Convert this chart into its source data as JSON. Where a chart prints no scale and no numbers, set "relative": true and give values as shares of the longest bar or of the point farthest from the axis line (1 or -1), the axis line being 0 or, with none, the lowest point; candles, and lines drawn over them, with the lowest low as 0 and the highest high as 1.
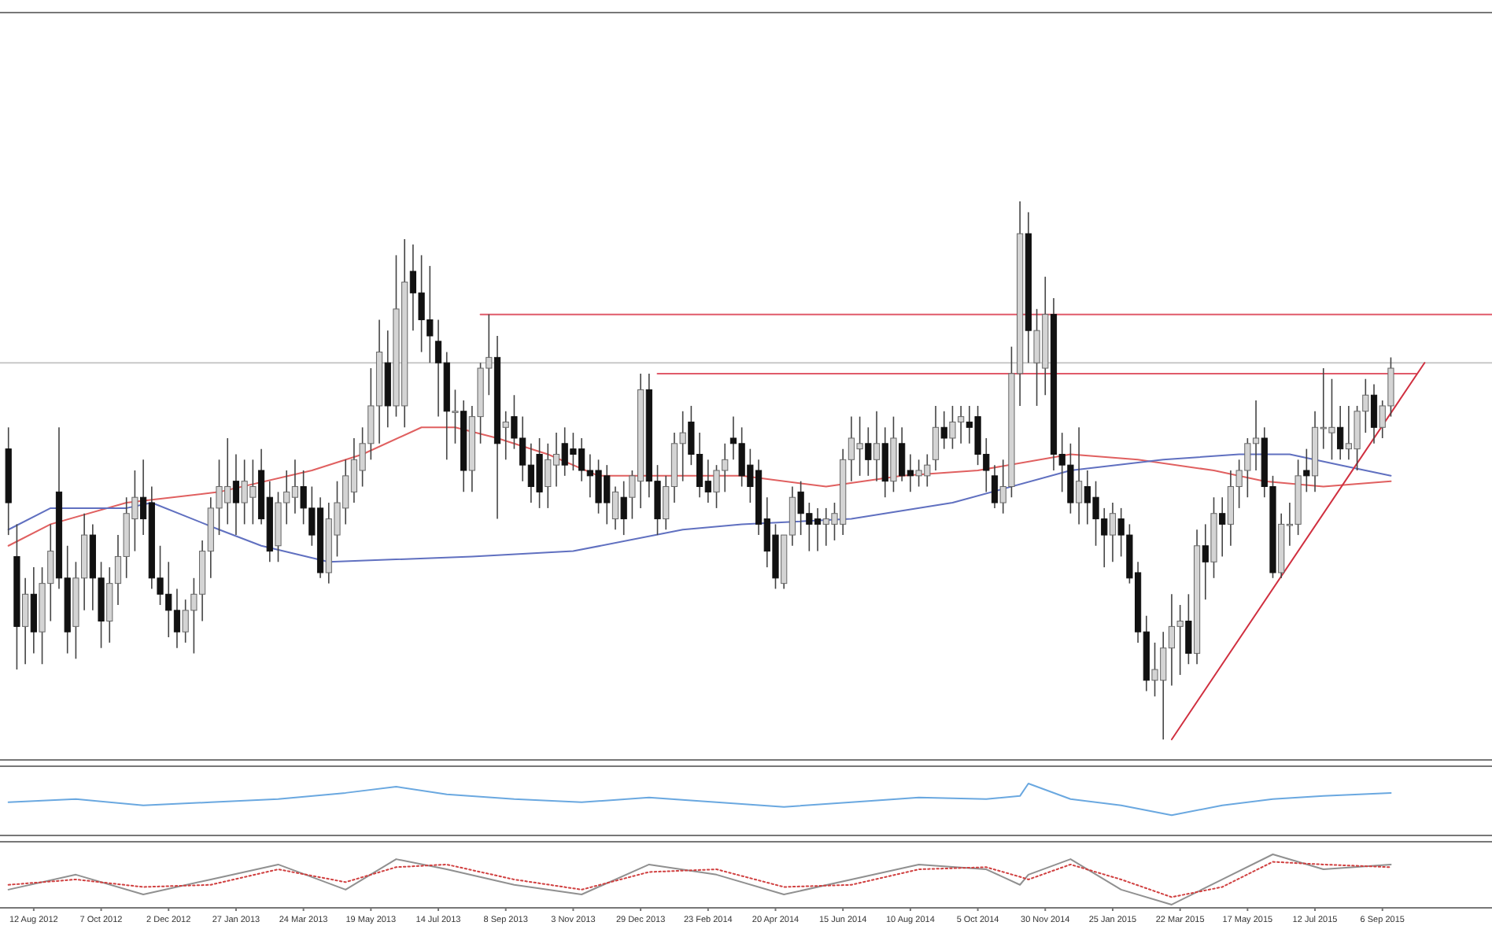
{
  "chart_data": [
    {
      "type": "candlestick",
      "relative": true,
      "tick_labels": false,
      "xlim": [
        "2012-07-15",
        "2015-12-06"
      ],
      "x": [
        "2012-07-22",
        "2012-07-29",
        "2012-08-05",
        "2012-08-12",
        "2012-08-19",
        "2012-08-26",
        "2012-09-02",
        "2012-09-09",
        "2012-09-16",
        "2012-09-23",
        "2012-09-30",
        "2012-10-07",
        "2012-10-14",
        "2012-10-21",
        "2012-10-28",
        "2012-11-04",
        "2012-11-11",
        "2012-11-18",
        "2012-11-25",
        "2012-12-02",
        "2012-12-09",
        "2012-12-16",
        "2012-12-23",
        "2012-12-30",
        "2013-01-06",
        "2013-01-13",
        "2013-01-20",
        "2013-01-27",
        "2013-02-03",
        "2013-02-10",
        "2013-02-17",
        "2013-02-24",
        "2013-03-03",
        "2013-03-10",
        "2013-03-17",
        "2013-03-24",
        "2013-03-31",
        "2013-04-07",
        "2013-04-14",
        "2013-04-21",
        "2013-04-28",
        "2013-05-05",
        "2013-05-12",
        "2013-05-19",
        "2013-05-26",
        "2013-06-02",
        "2013-06-09",
        "2013-06-16",
        "2013-06-23",
        "2013-06-30",
        "2013-07-07",
        "2013-07-14",
        "2013-07-21",
        "2013-07-28",
        "2013-08-04",
        "2013-08-11",
        "2013-08-18",
        "2013-08-25",
        "2013-09-01",
        "2013-09-08",
        "2013-09-15",
        "2013-09-22",
        "2013-09-29",
        "2013-10-06",
        "2013-10-13",
        "2013-10-20",
        "2013-10-27",
        "2013-11-03",
        "2013-11-10",
        "2013-11-17",
        "2013-11-24",
        "2013-12-01",
        "2013-12-08",
        "2013-12-15",
        "2013-12-22",
        "2013-12-29",
        "2014-01-05",
        "2014-01-12",
        "2014-01-19",
        "2014-01-26",
        "2014-02-02",
        "2014-02-09",
        "2014-02-16",
        "2014-02-23",
        "2014-03-02",
        "2014-03-09",
        "2014-03-16",
        "2014-03-23",
        "2014-03-30",
        "2014-04-06",
        "2014-04-13",
        "2014-04-20",
        "2014-04-27",
        "2014-05-04",
        "2014-05-11",
        "2014-05-18",
        "2014-05-25",
        "2014-06-01",
        "2014-06-08",
        "2014-06-15",
        "2014-06-22",
        "2014-06-29",
        "2014-07-06",
        "2014-07-13",
        "2014-07-20",
        "2014-07-27",
        "2014-08-03",
        "2014-08-10",
        "2014-08-17",
        "2014-08-24",
        "2014-08-31",
        "2014-09-07",
        "2014-09-14",
        "2014-09-21",
        "2014-09-28",
        "2014-10-05",
        "2014-10-12",
        "2014-10-19",
        "2014-10-26",
        "2014-11-02",
        "2014-11-09",
        "2014-11-16",
        "2014-11-23",
        "2014-11-30",
        "2014-12-07",
        "2014-12-14",
        "2014-12-21",
        "2014-12-28",
        "2015-01-04",
        "2015-01-11",
        "2015-01-18",
        "2015-01-25",
        "2015-02-01",
        "2015-02-08",
        "2015-02-15",
        "2015-02-22",
        "2015-03-01",
        "2015-03-08",
        "2015-03-15",
        "2015-03-22",
        "2015-03-29",
        "2015-04-05",
        "2015-04-12",
        "2015-04-19",
        "2015-04-26",
        "2015-05-03",
        "2015-05-10",
        "2015-05-17",
        "2015-05-24",
        "2015-05-31",
        "2015-06-07",
        "2015-06-14",
        "2015-06-21",
        "2015-06-28",
        "2015-07-05",
        "2015-07-12",
        "2015-07-19",
        "2015-07-26",
        "2015-08-02",
        "2015-08-09",
        "2015-08-16",
        "2015-08-23",
        "2015-08-30",
        "2015-09-06",
        "2015-09-13"
      ],
      "ohlc": [
        [
          0.54,
          0.58,
          0.38,
          0.44
        ],
        [
          0.34,
          0.4,
          0.13,
          0.21
        ],
        [
          0.21,
          0.3,
          0.14,
          0.27
        ],
        [
          0.27,
          0.32,
          0.16,
          0.2
        ],
        [
          0.2,
          0.32,
          0.14,
          0.29
        ],
        [
          0.29,
          0.4,
          0.22,
          0.35
        ],
        [
          0.46,
          0.58,
          0.28,
          0.3
        ],
        [
          0.3,
          0.36,
          0.16,
          0.2
        ],
        [
          0.21,
          0.33,
          0.15,
          0.3
        ],
        [
          0.3,
          0.42,
          0.24,
          0.38
        ],
        [
          0.38,
          0.4,
          0.24,
          0.3
        ],
        [
          0.3,
          0.33,
          0.17,
          0.22
        ],
        [
          0.22,
          0.32,
          0.18,
          0.29
        ],
        [
          0.29,
          0.38,
          0.25,
          0.34
        ],
        [
          0.34,
          0.45,
          0.3,
          0.42
        ],
        [
          0.41,
          0.5,
          0.35,
          0.45
        ],
        [
          0.45,
          0.52,
          0.38,
          0.41
        ],
        [
          0.44,
          0.47,
          0.28,
          0.3
        ],
        [
          0.3,
          0.36,
          0.25,
          0.27
        ],
        [
          0.27,
          0.33,
          0.19,
          0.24
        ],
        [
          0.24,
          0.28,
          0.17,
          0.2
        ],
        [
          0.2,
          0.26,
          0.18,
          0.24
        ],
        [
          0.24,
          0.3,
          0.16,
          0.27
        ],
        [
          0.27,
          0.37,
          0.22,
          0.35
        ],
        [
          0.35,
          0.45,
          0.3,
          0.43
        ],
        [
          0.43,
          0.52,
          0.38,
          0.47
        ],
        [
          0.44,
          0.56,
          0.4,
          0.47
        ],
        [
          0.48,
          0.53,
          0.38,
          0.44
        ],
        [
          0.44,
          0.52,
          0.4,
          0.48
        ],
        [
          0.45,
          0.52,
          0.4,
          0.47
        ],
        [
          0.5,
          0.54,
          0.4,
          0.41
        ],
        [
          0.45,
          0.48,
          0.33,
          0.35
        ],
        [
          0.36,
          0.46,
          0.33,
          0.44
        ],
        [
          0.44,
          0.5,
          0.4,
          0.46
        ],
        [
          0.45,
          0.52,
          0.42,
          0.47
        ],
        [
          0.47,
          0.5,
          0.4,
          0.43
        ],
        [
          0.43,
          0.47,
          0.36,
          0.38
        ],
        [
          0.43,
          0.45,
          0.3,
          0.31
        ],
        [
          0.31,
          0.44,
          0.29,
          0.41
        ],
        [
          0.38,
          0.48,
          0.34,
          0.44
        ],
        [
          0.43,
          0.52,
          0.4,
          0.49
        ],
        [
          0.46,
          0.56,
          0.44,
          0.52
        ],
        [
          0.5,
          0.58,
          0.47,
          0.55
        ],
        [
          0.55,
          0.69,
          0.52,
          0.62
        ],
        [
          0.62,
          0.78,
          0.55,
          0.72
        ],
        [
          0.7,
          0.76,
          0.58,
          0.62
        ],
        [
          0.62,
          0.9,
          0.6,
          0.8
        ],
        [
          0.62,
          0.93,
          0.58,
          0.85
        ],
        [
          0.87,
          0.92,
          0.76,
          0.83
        ],
        [
          0.83,
          0.9,
          0.72,
          0.78
        ],
        [
          0.78,
          0.88,
          0.7,
          0.75
        ],
        [
          0.74,
          0.78,
          0.6,
          0.7
        ],
        [
          0.7,
          0.72,
          0.52,
          0.61
        ],
        [
          0.61,
          0.65,
          0.55,
          0.61
        ],
        [
          0.61,
          0.63,
          0.46,
          0.5
        ],
        [
          0.5,
          0.62,
          0.46,
          0.6
        ],
        [
          0.6,
          0.7,
          0.55,
          0.69
        ],
        [
          0.69,
          0.79,
          0.64,
          0.71
        ],
        [
          0.71,
          0.75,
          0.41,
          0.55
        ],
        [
          0.58,
          0.61,
          0.52,
          0.59
        ],
        [
          0.6,
          0.64,
          0.54,
          0.56
        ],
        [
          0.56,
          0.6,
          0.48,
          0.51
        ],
        [
          0.51,
          0.55,
          0.44,
          0.47
        ],
        [
          0.53,
          0.56,
          0.43,
          0.46
        ],
        [
          0.47,
          0.55,
          0.43,
          0.52
        ],
        [
          0.51,
          0.57,
          0.47,
          0.53
        ],
        [
          0.55,
          0.58,
          0.49,
          0.51
        ],
        [
          0.54,
          0.57,
          0.5,
          0.53
        ],
        [
          0.54,
          0.56,
          0.48,
          0.5
        ],
        [
          0.5,
          0.53,
          0.45,
          0.49
        ],
        [
          0.5,
          0.52,
          0.42,
          0.44
        ],
        [
          0.49,
          0.51,
          0.4,
          0.44
        ],
        [
          0.41,
          0.47,
          0.39,
          0.46
        ],
        [
          0.45,
          0.48,
          0.38,
          0.41
        ],
        [
          0.45,
          0.5,
          0.41,
          0.49
        ],
        [
          0.48,
          0.68,
          0.43,
          0.65
        ],
        [
          0.65,
          0.68,
          0.45,
          0.48
        ],
        [
          0.48,
          0.51,
          0.38,
          0.41
        ],
        [
          0.41,
          0.49,
          0.39,
          0.47
        ],
        [
          0.47,
          0.57,
          0.44,
          0.55
        ],
        [
          0.55,
          0.61,
          0.48,
          0.57
        ],
        [
          0.59,
          0.62,
          0.51,
          0.53
        ],
        [
          0.53,
          0.57,
          0.45,
          0.47
        ],
        [
          0.48,
          0.52,
          0.44,
          0.46
        ],
        [
          0.46,
          0.51,
          0.43,
          0.5
        ],
        [
          0.5,
          0.55,
          0.46,
          0.52
        ],
        [
          0.56,
          0.6,
          0.52,
          0.55
        ],
        [
          0.55,
          0.58,
          0.47,
          0.49
        ],
        [
          0.51,
          0.54,
          0.44,
          0.47
        ],
        [
          0.5,
          0.52,
          0.38,
          0.4
        ],
        [
          0.41,
          0.45,
          0.32,
          0.35
        ],
        [
          0.38,
          0.4,
          0.28,
          0.3
        ],
        [
          0.29,
          0.38,
          0.28,
          0.38
        ],
        [
          0.38,
          0.47,
          0.36,
          0.45
        ],
        [
          0.46,
          0.48,
          0.38,
          0.42
        ],
        [
          0.42,
          0.44,
          0.35,
          0.4
        ],
        [
          0.41,
          0.43,
          0.35,
          0.4
        ],
        [
          0.4,
          0.43,
          0.36,
          0.41
        ],
        [
          0.4,
          0.44,
          0.37,
          0.42
        ],
        [
          0.4,
          0.54,
          0.38,
          0.52
        ],
        [
          0.52,
          0.6,
          0.48,
          0.56
        ],
        [
          0.54,
          0.6,
          0.49,
          0.55
        ],
        [
          0.55,
          0.58,
          0.49,
          0.52
        ],
        [
          0.52,
          0.61,
          0.48,
          0.55
        ],
        [
          0.55,
          0.58,
          0.45,
          0.48
        ],
        [
          0.48,
          0.6,
          0.46,
          0.56
        ],
        [
          0.55,
          0.58,
          0.48,
          0.49
        ],
        [
          0.5,
          0.53,
          0.46,
          0.49
        ],
        [
          0.49,
          0.52,
          0.47,
          0.5
        ],
        [
          0.49,
          0.53,
          0.47,
          0.51
        ],
        [
          0.52,
          0.62,
          0.5,
          0.58
        ],
        [
          0.58,
          0.61,
          0.54,
          0.56
        ],
        [
          0.56,
          0.62,
          0.54,
          0.59
        ],
        [
          0.59,
          0.62,
          0.55,
          0.6
        ],
        [
          0.59,
          0.62,
          0.55,
          0.58
        ],
        [
          0.6,
          0.62,
          0.51,
          0.53
        ],
        [
          0.53,
          0.56,
          0.46,
          0.5
        ],
        [
          0.49,
          0.51,
          0.43,
          0.44
        ],
        [
          0.44,
          0.52,
          0.42,
          0.47
        ],
        [
          0.47,
          0.73,
          0.45,
          0.68
        ],
        [
          0.68,
          1.0,
          0.62,
          0.94
        ],
        [
          0.94,
          0.98,
          0.7,
          0.76
        ],
        [
          0.7,
          0.8,
          0.62,
          0.76
        ],
        [
          0.69,
          0.86,
          0.64,
          0.79
        ],
        [
          0.79,
          0.82,
          0.5,
          0.53
        ],
        [
          0.53,
          0.57,
          0.46,
          0.51
        ],
        [
          0.51,
          0.55,
          0.42,
          0.44
        ],
        [
          0.44,
          0.58,
          0.4,
          0.48
        ],
        [
          0.47,
          0.5,
          0.4,
          0.44
        ],
        [
          0.45,
          0.48,
          0.36,
          0.41
        ],
        [
          0.41,
          0.43,
          0.32,
          0.38
        ],
        [
          0.38,
          0.44,
          0.33,
          0.42
        ],
        [
          0.41,
          0.43,
          0.34,
          0.38
        ],
        [
          0.38,
          0.4,
          0.29,
          0.3
        ],
        [
          0.31,
          0.33,
          0.18,
          0.2
        ],
        [
          0.2,
          0.23,
          0.09,
          0.11
        ],
        [
          0.11,
          0.18,
          0.08,
          0.13
        ],
        [
          0.11,
          0.2,
          0,
          0.17
        ],
        [
          0.17,
          0.27,
          0.1,
          0.21
        ],
        [
          0.21,
          0.25,
          0.12,
          0.22
        ],
        [
          0.22,
          0.27,
          0.14,
          0.16
        ],
        [
          0.16,
          0.39,
          0.14,
          0.36
        ],
        [
          0.36,
          0.4,
          0.26,
          0.33
        ],
        [
          0.33,
          0.45,
          0.3,
          0.42
        ],
        [
          0.42,
          0.45,
          0.34,
          0.4
        ],
        [
          0.4,
          0.5,
          0.36,
          0.47
        ],
        [
          0.47,
          0.52,
          0.43,
          0.5
        ],
        [
          0.5,
          0.56,
          0.45,
          0.55
        ],
        [
          0.55,
          0.63,
          0.5,
          0.56
        ],
        [
          0.56,
          0.58,
          0.45,
          0.47
        ],
        [
          0.47,
          0.49,
          0.3,
          0.31
        ],
        [
          0.31,
          0.42,
          0.3,
          0.4
        ],
        [
          0.4,
          0.44,
          0.36,
          0.4
        ],
        [
          0.4,
          0.52,
          0.38,
          0.49
        ],
        [
          0.5,
          0.54,
          0.46,
          0.49
        ],
        [
          0.49,
          0.61,
          0.46,
          0.58
        ],
        [
          0.58,
          0.69,
          0.54,
          0.58
        ],
        [
          0.57,
          0.67,
          0.52,
          0.58
        ],
        [
          0.58,
          0.62,
          0.52,
          0.54
        ],
        [
          0.54,
          0.62,
          0.52,
          0.55
        ],
        [
          0.54,
          0.62,
          0.5,
          0.61
        ],
        [
          0.61,
          0.67,
          0.57,
          0.64
        ],
        [
          0.64,
          0.66,
          0.55,
          0.58
        ],
        [
          0.58,
          0.63,
          0.56,
          0.62
        ],
        [
          0.62,
          0.71,
          0.6,
          0.69
        ]
      ],
      "series": [
        {
          "type": "line",
          "color": "#e06060",
          "x": [
            "2012-07-22",
            "2012-08-26",
            "2012-10-28",
            "2013-01-13",
            "2013-03-31",
            "2013-05-12",
            "2013-06-30",
            "2013-07-28",
            "2013-09-01",
            "2013-10-13",
            "2013-11-24",
            "2014-01-12",
            "2014-03-23",
            "2014-06-01",
            "2014-08-03",
            "2014-10-05",
            "2014-12-21",
            "2015-02-15",
            "2015-04-19",
            "2015-05-31",
            "2015-07-19",
            "2015-09-13"
          ],
          "values": [
            0.36,
            0.4,
            0.44,
            0.46,
            0.5,
            0.53,
            0.58,
            0.58,
            0.56,
            0.53,
            0.49,
            0.49,
            0.49,
            0.47,
            0.49,
            0.5,
            0.53,
            0.52,
            0.5,
            0.48,
            0.47,
            0.48
          ]
        },
        {
          "type": "line",
          "color": "#6070c0",
          "x": [
            "2012-07-22",
            "2012-08-26",
            "2012-10-28",
            "2012-11-18",
            "2013-01-13",
            "2013-02-17",
            "2013-04-14",
            "2013-08-11",
            "2013-11-03",
            "2014-02-02",
            "2014-03-23",
            "2014-06-22",
            "2014-09-14",
            "2014-12-21",
            "2015-03-08",
            "2015-05-10",
            "2015-06-21",
            "2015-08-02",
            "2015-09-13"
          ],
          "values": [
            0.39,
            0.43,
            0.43,
            0.44,
            0.39,
            0.36,
            0.33,
            0.34,
            0.35,
            0.39,
            0.4,
            0.41,
            0.44,
            0.5,
            0.52,
            0.53,
            0.53,
            0.51,
            0.49
          ]
        },
        {
          "type": "line",
          "color": "#e05a6a",
          "x": [
            "2013-08-18",
            "2015-12-06"
          ],
          "values": [
            0.79,
            0.79
          ]
        },
        {
          "type": "line",
          "color": "#e05a6a",
          "x": [
            "2014-01-12",
            "2015-10-04"
          ],
          "values": [
            0.68,
            0.68
          ]
        },
        {
          "type": "line",
          "color": "#d03040",
          "x": [
            "2015-03-15",
            "2015-10-11"
          ],
          "values": [
            0,
            0.7
          ]
        }
      ],
      "ref_lines": [
        {
          "axis": "y",
          "value": 0.7,
          "color": "#c8c8c8"
        }
      ]
    },
    {
      "type": "line",
      "relative": true,
      "tick_labels": false,
      "xlim": [
        "2012-07-15",
        "2015-12-06"
      ],
      "series": [
        {
          "color": "#6aa8e0",
          "x": [
            "2012-07-22",
            "2012-09-16",
            "2012-11-11",
            "2013-01-06",
            "2013-03-03",
            "2013-04-28",
            "2013-06-09",
            "2013-07-21",
            "2013-09-15",
            "2013-11-10",
            "2014-01-05",
            "2014-03-02",
            "2014-04-27",
            "2014-06-22",
            "2014-08-17",
            "2014-10-12",
            "2014-11-09",
            "2014-11-16",
            "2014-12-21",
            "2015-02-01",
            "2015-03-15",
            "2015-04-26",
            "2015-06-07",
            "2015-07-19",
            "2015-09-13"
          ],
          "values": [
            0.64,
            0.7,
            0.58,
            0.64,
            0.7,
            0.82,
            0.94,
            0.79,
            0.7,
            0.64,
            0.73,
            0.64,
            0.55,
            0.64,
            0.73,
            0.7,
            0.76,
            1.0,
            0.7,
            0.58,
            0.39,
            0.58,
            0.7,
            0.76,
            0.82
          ]
        }
      ]
    },
    {
      "type": "line",
      "relative": true,
      "tick_labels": "x",
      "xlim": [
        "2012-07-15",
        "2015-12-06"
      ],
      "xticks": [
        {
          "value": "2012-08-12",
          "label": "12 Aug 2012"
        },
        {
          "value": "2012-10-07",
          "label": "7 Oct 2012"
        },
        {
          "value": "2012-12-02",
          "label": "2 Dec 2012"
        },
        {
          "value": "2013-01-27",
          "label": "27 Jan 2013"
        },
        {
          "value": "2013-03-24",
          "label": "24 Mar 2013"
        },
        {
          "value": "2013-05-19",
          "label": "19 May 2013"
        },
        {
          "value": "2013-07-14",
          "label": "14 Jul 2013"
        },
        {
          "value": "2013-09-08",
          "label": "8 Sep 2013"
        },
        {
          "value": "2013-11-03",
          "label": "3 Nov 2013"
        },
        {
          "value": "2013-12-29",
          "label": "29 Dec 2013"
        },
        {
          "value": "2014-02-23",
          "label": "23 Feb 2014"
        },
        {
          "value": "2014-04-20",
          "label": "20 Apr 2014"
        },
        {
          "value": "2014-06-15",
          "label": "15 Jun 2014"
        },
        {
          "value": "2014-08-10",
          "label": "10 Aug 2014"
        },
        {
          "value": "2014-10-05",
          "label": "5 Oct 2014"
        },
        {
          "value": "2014-11-30",
          "label": "30 Nov 2014"
        },
        {
          "value": "2015-01-25",
          "label": "25 Jan 2015"
        },
        {
          "value": "2015-03-22",
          "label": "22 Mar 2015"
        },
        {
          "value": "2015-05-17",
          "label": "17 May 2015"
        },
        {
          "value": "2015-07-12",
          "label": "12 Jul 2015"
        },
        {
          "value": "2015-09-06",
          "label": "6 Sep 2015"
        }
      ],
      "series": [
        {
          "color": "#909090",
          "x": [
            "2012-07-22",
            "2012-09-16",
            "2012-11-11",
            "2013-01-06",
            "2013-03-03",
            "2013-04-28",
            "2013-06-09",
            "2013-07-21",
            "2013-09-15",
            "2013-11-10",
            "2014-01-05",
            "2014-03-02",
            "2014-04-27",
            "2014-06-22",
            "2014-08-17",
            "2014-10-12",
            "2014-11-09",
            "2014-11-16",
            "2014-12-21",
            "2015-02-01",
            "2015-03-15",
            "2015-04-26",
            "2015-06-07",
            "2015-07-19",
            "2015-09-13"
          ],
          "values": [
            0.34,
            0.62,
            0.25,
            0.53,
            0.81,
            0.34,
            0.91,
            0.72,
            0.43,
            0.25,
            0.81,
            0.62,
            0.25,
            0.53,
            0.81,
            0.72,
            0.43,
            0.62,
            0.91,
            0.34,
            0.06,
            0.53,
            1.0,
            0.72,
            0.81
          ]
        },
        {
          "color": "#d04040",
          "line_style": "dotted",
          "x": [
            "2012-07-22",
            "2012-09-16",
            "2012-11-11",
            "2013-01-06",
            "2013-03-03",
            "2013-04-28",
            "2013-06-09",
            "2013-07-21",
            "2013-09-15",
            "2013-11-10",
            "2014-01-05",
            "2014-03-02",
            "2014-04-27",
            "2014-06-22",
            "2014-08-17",
            "2014-10-12",
            "2014-11-09",
            "2014-11-16",
            "2014-12-21",
            "2015-02-01",
            "2015-03-15",
            "2015-04-26",
            "2015-06-07",
            "2015-07-19",
            "2015-09-13"
          ],
          "values": [
            0.43,
            0.53,
            0.39,
            0.43,
            0.72,
            0.48,
            0.76,
            0.81,
            0.53,
            0.34,
            0.67,
            0.72,
            0.39,
            0.43,
            0.72,
            0.76,
            0.58,
            0.53,
            0.81,
            0.53,
            0.2,
            0.39,
            0.86,
            0.81,
            0.76
          ]
        }
      ]
    }
  ]
}
